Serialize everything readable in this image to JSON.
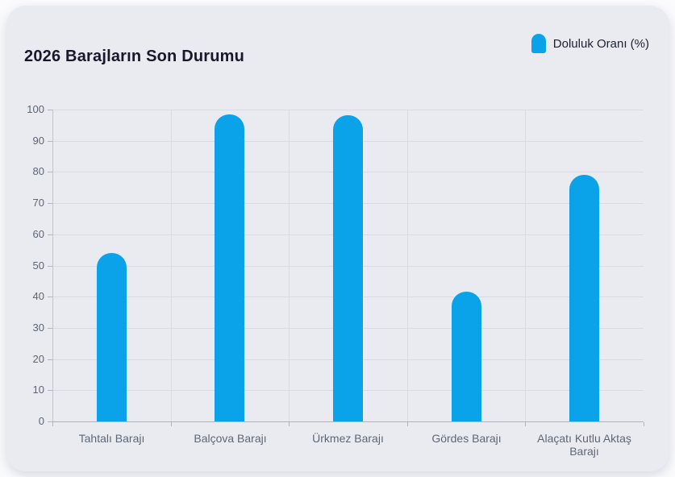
{
  "page": {
    "background_color": "#fbfbfd",
    "card_color": "#e9ebf1"
  },
  "header": {
    "title": "2026 Barajların Son Durumu"
  },
  "legend": {
    "label": "Doluluk Oranı (%)",
    "marker_color": "#0aa2e8"
  },
  "chart_data": {
    "type": "bar",
    "title": "2026 Barajların Son Durumu",
    "categories": [
      "Tahtalı Barajı",
      "Balçova Barajı",
      "Ürkmez Barajı",
      "Gördes Barajı",
      "Alaçatı Kutlu Aktaş Barajı"
    ],
    "series": [
      {
        "name": "Doluluk Oranı (%)",
        "values": [
          54,
          98.4,
          98.1,
          41.5,
          79
        ]
      }
    ],
    "xlabel": "",
    "ylabel": "",
    "ylim": [
      0,
      100
    ],
    "ytick_step": 10,
    "ytick_labels": [
      "0",
      "10",
      "20",
      "30",
      "40",
      "50",
      "60",
      "70",
      "80",
      "90",
      "100"
    ],
    "grid": true,
    "legend_position": "top-right",
    "bar_color": "#0aa2e8"
  }
}
